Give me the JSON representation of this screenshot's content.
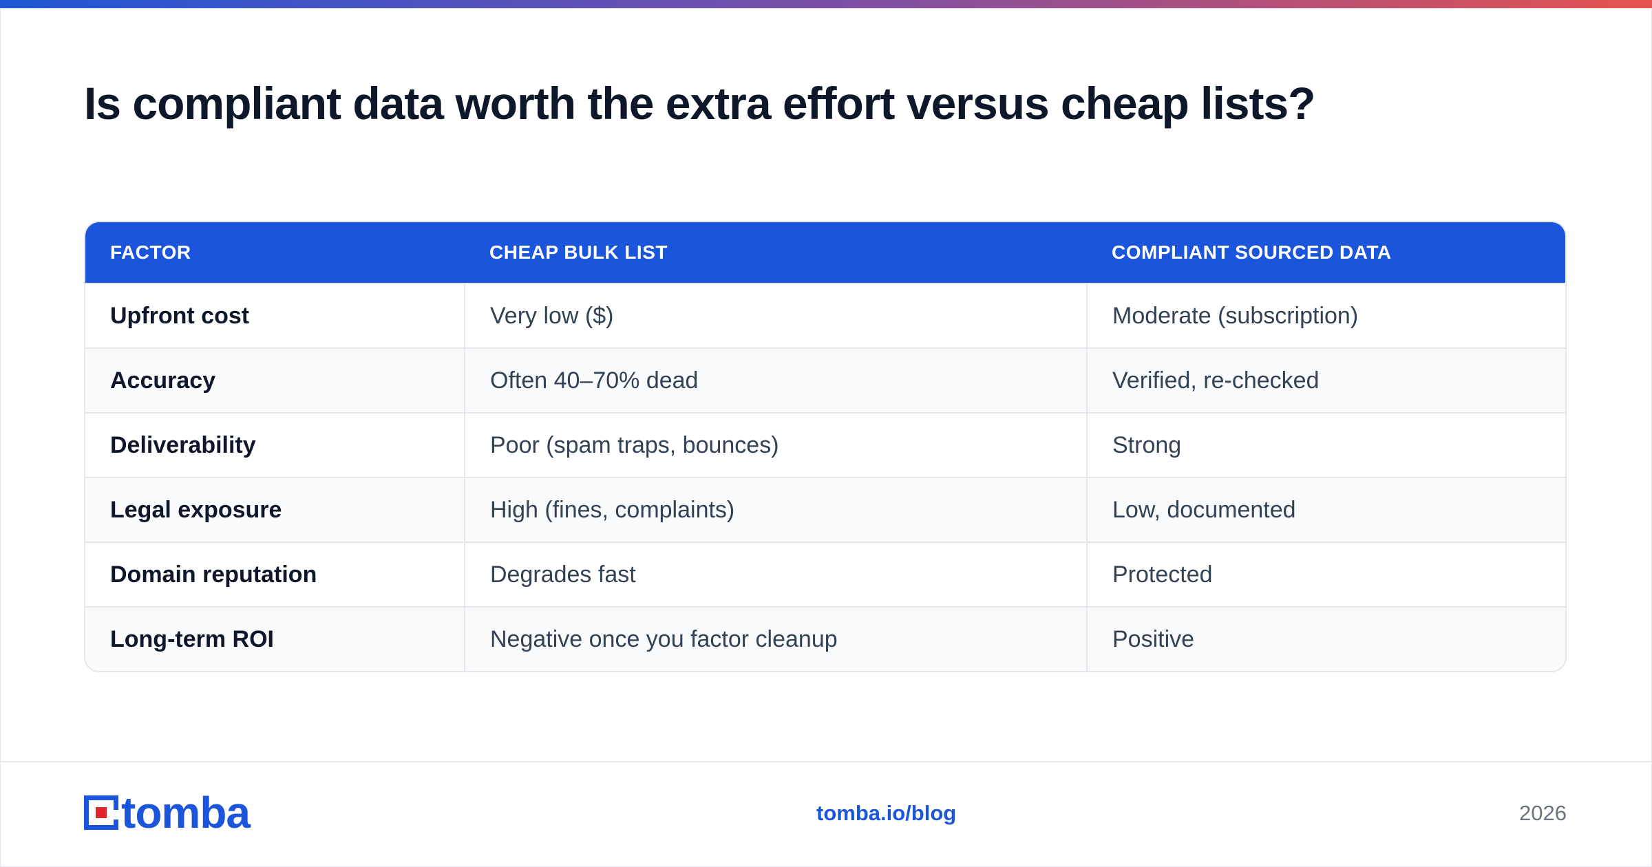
{
  "title": "Is compliant data worth the extra effort versus cheap lists?",
  "table": {
    "headers": [
      "FACTOR",
      "CHEAP BULK LIST",
      "COMPLIANT SOURCED DATA"
    ],
    "rows": [
      [
        "Upfront cost",
        "Very low ($)",
        "Moderate (subscription)"
      ],
      [
        "Accuracy",
        "Often 40–70% dead",
        "Verified, re-checked"
      ],
      [
        "Deliverability",
        "Poor (spam traps, bounces)",
        "Strong"
      ],
      [
        "Legal exposure",
        "High (fines, complaints)",
        "Low, documented"
      ],
      [
        "Domain reputation",
        "Degrades fast",
        "Protected"
      ],
      [
        "Long-term ROI",
        "Negative once you factor cleanup",
        "Positive"
      ]
    ]
  },
  "footer": {
    "logo_text": "tomba",
    "link": "tomba.io/blog",
    "year": "2026"
  },
  "colors": {
    "accent": "#1a55dc",
    "logo_red": "#e0242a",
    "gradient_start": "#1f57d6",
    "gradient_end": "#e5524f"
  }
}
